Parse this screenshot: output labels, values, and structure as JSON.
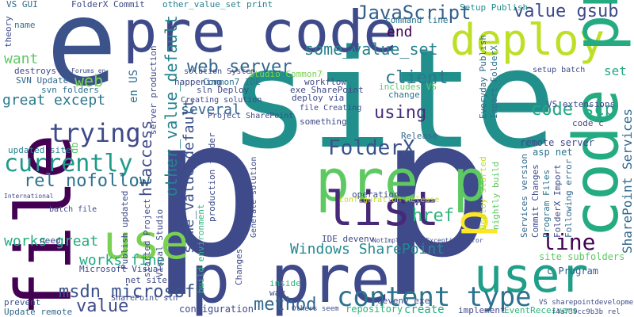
{
  "words": [
    {
      "text": "site",
      "color": "#21908d"
    },
    {
      "text": "p p",
      "color": "#3e4a89"
    },
    {
      "text": "file",
      "color": "#440154"
    },
    {
      "text": "e",
      "color": "#3b528b"
    },
    {
      "text": "pre code",
      "color": "#3e4a89"
    },
    {
      "text": "deploy",
      "color": "#bddf26"
    },
    {
      "text": "code pre",
      "color": "#25ab82"
    },
    {
      "text": "pre p",
      "color": "#5ec962"
    },
    {
      "text": "list",
      "color": "#482878"
    },
    {
      "text": "use",
      "color": "#7ad151"
    },
    {
      "text": "user",
      "color": "#1f9e89"
    },
    {
      "text": "p pre",
      "color": "#3e4a89"
    },
    {
      "text": "p",
      "color": "#fde725"
    },
    {
      "text": "content type",
      "color": "#2c728e"
    },
    {
      "text": "FolderX",
      "color": "#3b528b"
    },
    {
      "text": "web server",
      "color": "#31688e"
    },
    {
      "text": "some_value_set",
      "color": "#26828e"
    },
    {
      "text": "JavaScript",
      "color": "#35608d"
    },
    {
      "text": "value gsub",
      "color": "#3e4a89"
    },
    {
      "text": "end",
      "color": "#440154"
    },
    {
      "text": "client",
      "color": "#2a788e"
    },
    {
      "text": "using",
      "color": "#472c7a"
    },
    {
      "text": "code scp",
      "color": "#22a884"
    },
    {
      "text": "trying",
      "color": "#3e4a89"
    },
    {
      "text": "currently",
      "color": "#1f9a8a"
    },
    {
      "text": "rel nofollow",
      "color": "#2c728e"
    },
    {
      "text": "works great",
      "color": "#25ab82"
    },
    {
      "text": "works fine",
      "color": "#22a884"
    },
    {
      "text": "msdn microsoft",
      "color": "#3b528b"
    },
    {
      "text": "value",
      "color": "#3e4a89"
    },
    {
      "text": "method",
      "color": "#31688e"
    },
    {
      "text": "Windows SharePoint",
      "color": "#23898e"
    },
    {
      "text": "line",
      "color": "#440154"
    },
    {
      "text": "href",
      "color": "#2fb47c"
    },
    {
      "text": "great except",
      "color": "#2a788e"
    },
    {
      "text": "want",
      "color": "#5ec962"
    },
    {
      "text": "web",
      "color": "#7ad151"
    },
    {
      "text": "set",
      "color": "#22a884"
    },
    {
      "text": "several",
      "color": "#31688e"
    },
    {
      "text": "htaccess",
      "color": "#3e4a89"
    },
    {
      "text": "other_value_default",
      "color": "#26828e"
    },
    {
      "text": "some_value_default",
      "color": "#3b528b"
    },
    {
      "text": "VS GUI",
      "color": "#31688e"
    },
    {
      "text": "FolderX Commit",
      "color": "#3e4a89"
    },
    {
      "text": "other_value_set print",
      "color": "#26828e"
    },
    {
      "text": "command line",
      "color": "#2c728e"
    },
    {
      "text": "Setup Publish",
      "color": "#21908d"
    },
    {
      "text": "SharePoint Services",
      "color": "#31688e"
    },
    {
      "text": "VS extensions",
      "color": "#3e4a89"
    },
    {
      "text": "remote server",
      "color": "#3e4a89"
    },
    {
      "text": "asp net",
      "color": "#2c728e"
    },
    {
      "text": "c Program",
      "color": "#35608d"
    },
    {
      "text": "site subfolders",
      "color": "#5ec962"
    },
    {
      "text": "create",
      "color": "#25ab82"
    },
    {
      "text": "repository",
      "color": "#2fb47c"
    },
    {
      "text": "configuration",
      "color": "#3e4a89"
    },
    {
      "text": "prevent",
      "color": "#3b528b"
    },
    {
      "text": "Update remote",
      "color": "#31688e"
    },
    {
      "text": "need",
      "color": "#3e4a89"
    },
    {
      "text": "net site",
      "color": "#3e4a89"
    },
    {
      "text": "Microsoft Visual",
      "color": "#3e4a89"
    },
    {
      "text": "SVN Update",
      "color": "#31688e"
    },
    {
      "text": "svn folders",
      "color": "#2c728e"
    },
    {
      "text": "updated site",
      "color": "#26828e"
    },
    {
      "text": "IDE devenv",
      "color": "#3e4a89"
    },
    {
      "text": "devenv exe",
      "color": "#3e4a89"
    },
    {
      "text": "implement",
      "color": "#3e4a89"
    },
    {
      "text": "EventReceivers",
      "color": "#2fb47c"
    },
    {
      "text": "Release",
      "color": "#31688e"
    },
    {
      "text": "workflow",
      "color": "#3e4a89"
    },
    {
      "text": "change",
      "color": "#2c728e"
    },
    {
      "text": "something",
      "color": "#3e4a89"
    },
    {
      "text": "deploy via",
      "color": "#3e4a89"
    },
    {
      "text": "exe SharePoint",
      "color": "#3e4a89"
    },
    {
      "text": "includes VS",
      "color": "#5ec962"
    },
    {
      "text": "Studio Common7",
      "color": "#7ad151"
    },
    {
      "text": "happening",
      "color": "#3e4a89"
    },
    {
      "text": "Common7 IDE",
      "color": "#2c728e"
    },
    {
      "text": "sln Deploy",
      "color": "#3e4a89"
    },
    {
      "text": "operation",
      "color": "#3e4a89"
    },
    {
      "text": "inside",
      "color": "#2fb47c"
    },
    {
      "text": "way",
      "color": "#3e4a89"
    },
    {
      "text": "Everyday Publish",
      "color": "#31688e"
    },
    {
      "text": "Import FolderX",
      "color": "#2c728e"
    },
    {
      "text": "Publish updated",
      "color": "#3e4a89"
    },
    {
      "text": "SVN",
      "color": "#3e4a89"
    },
    {
      "text": "Deploy started",
      "color": "#bddf26"
    },
    {
      "text": "nightly build",
      "color": "#5ec962"
    },
    {
      "text": "Services version",
      "color": "#31688e"
    },
    {
      "text": "Commit Changes",
      "color": "#3e4a89"
    },
    {
      "text": "Program Files",
      "color": "#2c728e"
    },
    {
      "text": "FolderX Import",
      "color": "#3e4a89"
    },
    {
      "text": "Following error",
      "color": "#31688e"
    },
    {
      "text": "code c",
      "color": "#3e4a89"
    },
    {
      "text": "en US",
      "color": "#2c728e"
    },
    {
      "text": "server production",
      "color": "#3e4a89"
    },
    {
      "text": "build environment",
      "color": "#2fb47c"
    },
    {
      "text": "production folder",
      "color": "#3e4a89"
    },
    {
      "text": "started Project",
      "color": "#3e4a89"
    },
    {
      "text": "Visual Studio",
      "color": "#3e4a89"
    },
    {
      "text": "Changes Update",
      "color": "#3e4a89"
    },
    {
      "text": "theory",
      "color": "#3e4a89"
    },
    {
      "text": "name",
      "color": "#2c728e"
    },
    {
      "text": "destroys",
      "color": "#3e4a89"
    },
    {
      "text": "SharePoint sln",
      "color": "#3e4a89"
    },
    {
      "text": "batch file",
      "color": "#3e4a89"
    },
    {
      "text": "db",
      "color": "#5ec962"
    },
    {
      "text": "file Creating",
      "color": "#3e4a89"
    },
    {
      "text": "Project SharePoint",
      "color": "#3e4a89"
    },
    {
      "text": "Creating solution",
      "color": "#3e4a89"
    },
    {
      "text": "solution System",
      "color": "#3e4a89"
    },
    {
      "text": "Configuration Release",
      "color": "#bddf26"
    },
    {
      "text": "Generate solution",
      "color": "#3e4a89"
    },
    {
      "text": "setup batch",
      "color": "#3e4a89"
    },
    {
      "text": "VS sharepointdevelopment",
      "color": "#3e4a89"
    },
    {
      "text": "Others seem",
      "color": "#3e4a89"
    },
    {
      "text": "f4a739cc9b3b rel",
      "color": "#3e4a89"
    },
    {
      "text": "NotImplementedException Error",
      "color": "#3e4a89"
    },
    {
      "text": "International",
      "color": "#3e4a89"
    },
    {
      "text": "Forums en",
      "color": "#3e4a89"
    }
  ]
}
